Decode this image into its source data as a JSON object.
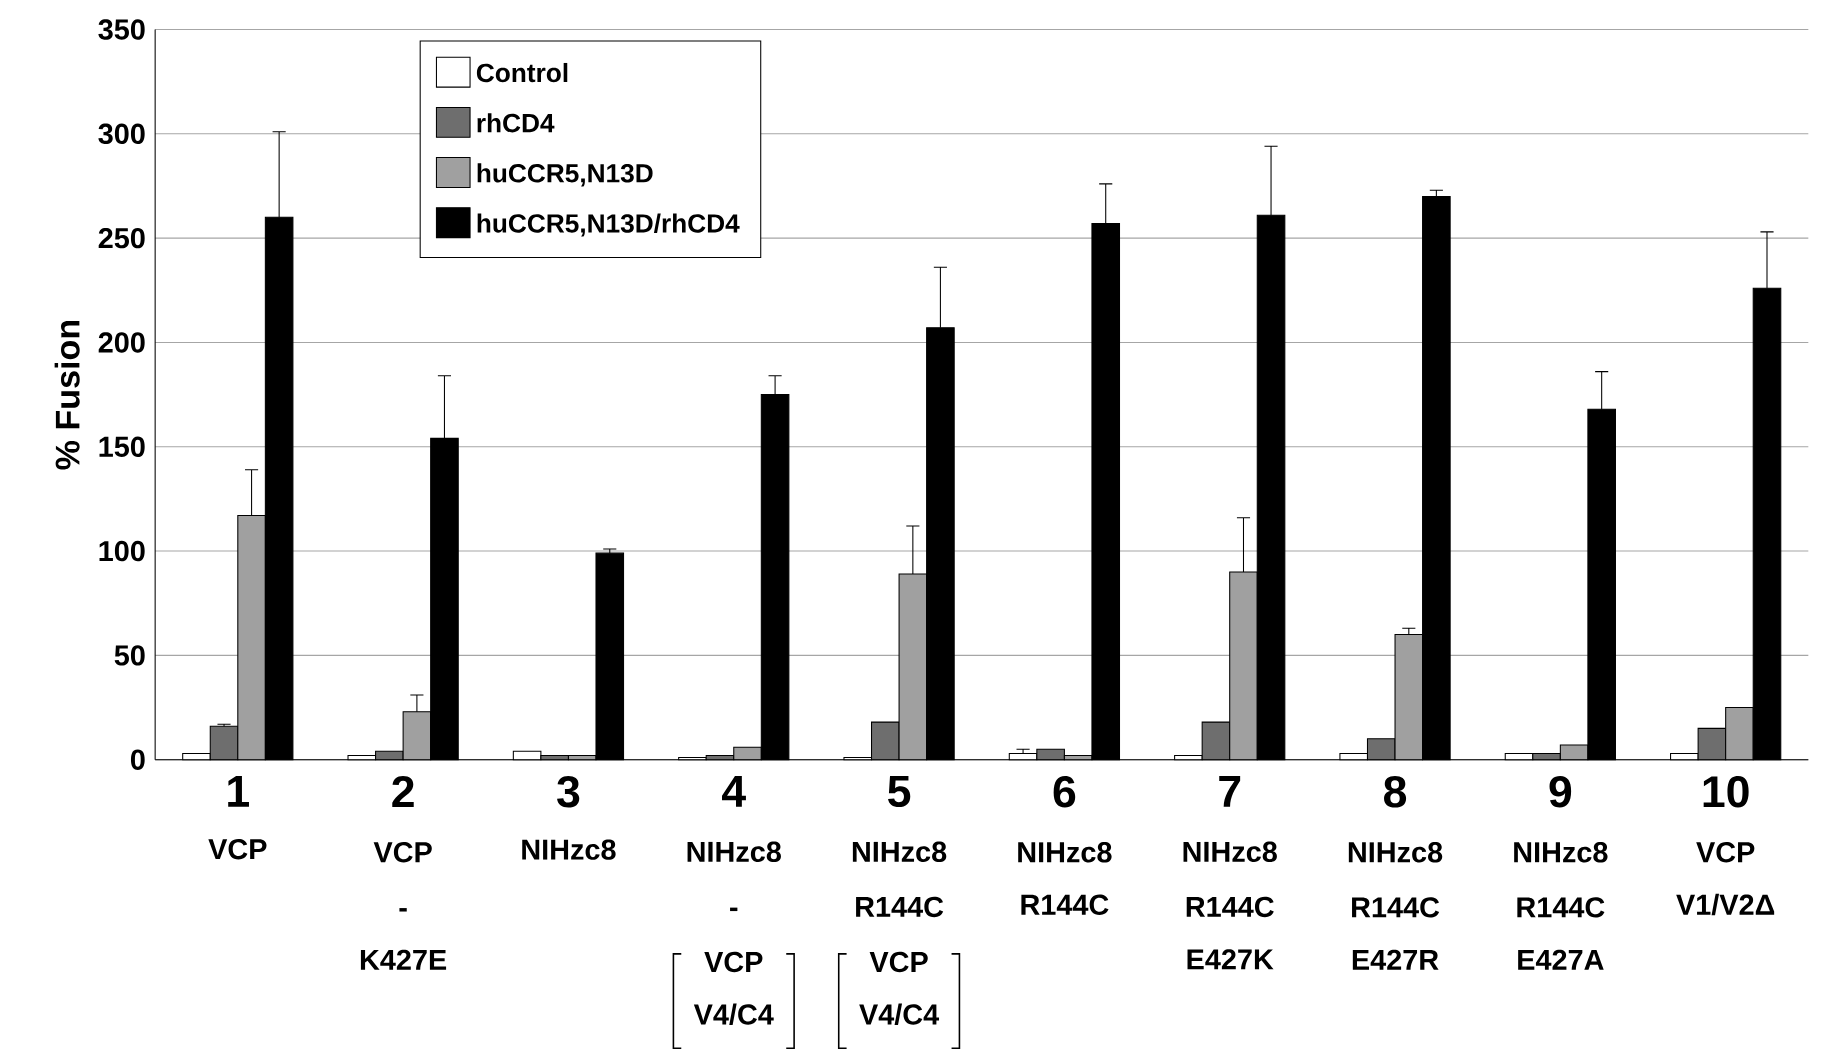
{
  "chart_data": {
    "type": "bar",
    "ylabel": "% Fusion",
    "categories": [
      "1\nVCP",
      "2\nVCP\n-\nK427E",
      "3\nNIHzc8",
      "4\nNIHzc8\n-\nVCP\nV4/C4",
      "5\nNIHzc8\nR144C\nVCP\nV4/C4",
      "6\nNIHzc8\nR144C",
      "7\nNIHzc8\nR144C\nE427K",
      "8\nNIHzc8\nR144C\nE427R",
      "9\nNIHzc8\nR144C\nE427A",
      "10\nVCP\nV1/V2Δ"
    ],
    "ylim": [
      0,
      350
    ],
    "yticks": [
      0,
      50,
      100,
      150,
      200,
      250,
      300,
      350
    ],
    "grid": "y",
    "stacked": false,
    "legend": "top left",
    "series": [
      {
        "name": "Control",
        "color": "#ffffff",
        "values": [
          3,
          2,
          4,
          1,
          1,
          3,
          2,
          3,
          3,
          3
        ],
        "errors": [
          null,
          null,
          null,
          null,
          null,
          [
            3,
            5
          ],
          null,
          null,
          null,
          null
        ]
      },
      {
        "name": "rhCD4",
        "color": "#6e6e6e",
        "values": [
          16,
          4,
          2,
          2,
          18,
          5,
          18,
          10,
          3,
          15
        ],
        "errors": [
          [
            16,
            17
          ],
          null,
          null,
          null,
          null,
          null,
          null,
          null,
          null,
          null
        ]
      },
      {
        "name": "huCCR5,N13D",
        "color": "#a0a0a0",
        "values": [
          117,
          23,
          2,
          6,
          89,
          2,
          90,
          60,
          7,
          25
        ],
        "errors": [
          [
            117,
            139
          ],
          [
            23,
            31
          ],
          null,
          null,
          [
            89,
            112
          ],
          null,
          [
            90,
            116
          ],
          [
            60,
            63
          ],
          null,
          null
        ]
      },
      {
        "name": "huCCR5,N13D/rhCD4",
        "color": "#000000",
        "values": [
          260,
          154,
          99,
          175,
          207,
          257,
          261,
          270,
          168,
          226
        ],
        "errors": [
          [
            260,
            301
          ],
          [
            154,
            184
          ],
          [
            99,
            101
          ],
          [
            175,
            184
          ],
          [
            207,
            236
          ],
          [
            257,
            276
          ],
          [
            261,
            294
          ],
          [
            270,
            273
          ],
          [
            168,
            186
          ],
          [
            226,
            253
          ]
        ]
      }
    ]
  }
}
